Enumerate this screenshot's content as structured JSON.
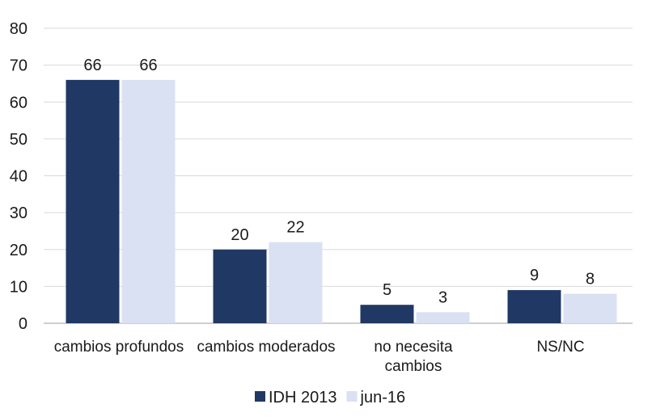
{
  "chart_data": {
    "type": "bar",
    "title": "",
    "xlabel": "",
    "ylabel": "",
    "ylim": [
      0,
      80
    ],
    "yticks": [
      0,
      10,
      20,
      30,
      40,
      50,
      60,
      70,
      80
    ],
    "grid": true,
    "categories": [
      [
        "cambios profundos"
      ],
      [
        "cambios moderados"
      ],
      [
        "no necesita",
        "cambios"
      ],
      [
        "NS/NC"
      ]
    ],
    "series": [
      {
        "name": "IDH 2013",
        "color": "#203864",
        "values": [
          66,
          20,
          5,
          9
        ]
      },
      {
        "name": "jun-16",
        "color": "#D9E1F2",
        "values": [
          66,
          22,
          3,
          8
        ]
      }
    ],
    "legend_position": "bottom",
    "data_labels": true
  }
}
